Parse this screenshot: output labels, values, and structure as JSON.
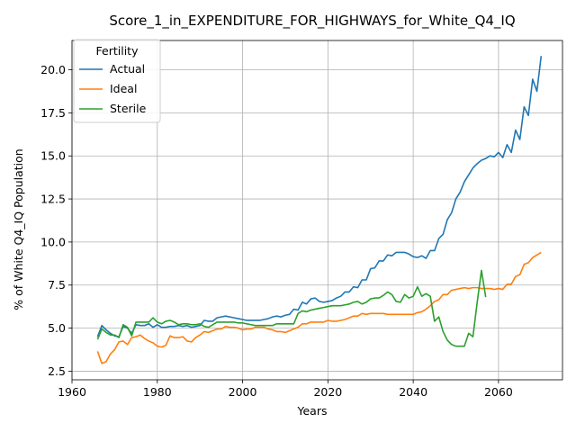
{
  "chart_data": {
    "type": "line",
    "title": "Score_1_in_EXPENDITURE_FOR_HIGHWAYS_for_White_Q4_IQ",
    "xlabel": "Years",
    "ylabel": "% of White Q4_IQ Population",
    "xlim": [
      1960,
      2075
    ],
    "ylim": [
      2.0,
      21.7
    ],
    "x_ticks": [
      1960,
      1980,
      2000,
      2020,
      2040,
      2060
    ],
    "x_tick_labels": [
      "1960",
      "1980",
      "2000",
      "2020",
      "2040",
      "2060"
    ],
    "y_ticks": [
      2.5,
      5.0,
      7.5,
      10.0,
      12.5,
      15.0,
      17.5,
      20.0
    ],
    "y_tick_labels": [
      "2.5",
      "5.0",
      "7.5",
      "10.0",
      "12.5",
      "15.0",
      "17.5",
      "20.0"
    ],
    "grid": true,
    "legend": {
      "title": "Fertility",
      "placement": "top-left"
    },
    "series": [
      {
        "name": "Actual",
        "color": "#1f77b4",
        "points": [
          [
            1966,
            4.5
          ],
          [
            1967,
            5.15
          ],
          [
            1968,
            4.9
          ],
          [
            1969,
            4.7
          ],
          [
            1970,
            4.55
          ],
          [
            1971,
            4.5
          ],
          [
            1972,
            5.1
          ],
          [
            1973,
            5.0
          ],
          [
            1974,
            4.7
          ],
          [
            1975,
            5.2
          ],
          [
            1976,
            5.15
          ],
          [
            1977,
            5.15
          ],
          [
            1978,
            5.25
          ],
          [
            1979,
            5.05
          ],
          [
            1980,
            5.2
          ],
          [
            1981,
            5.05
          ],
          [
            1982,
            5.05
          ],
          [
            1983,
            5.1
          ],
          [
            1984,
            5.1
          ],
          [
            1985,
            5.15
          ],
          [
            1986,
            5.1
          ],
          [
            1987,
            5.15
          ],
          [
            1988,
            5.05
          ],
          [
            1989,
            5.1
          ],
          [
            1990,
            5.15
          ],
          [
            1991,
            5.45
          ],
          [
            1992,
            5.4
          ],
          [
            1993,
            5.4
          ],
          [
            1994,
            5.6
          ],
          [
            1995,
            5.65
          ],
          [
            1996,
            5.7
          ],
          [
            1997,
            5.65
          ],
          [
            1998,
            5.6
          ],
          [
            1999,
            5.55
          ],
          [
            2000,
            5.5
          ],
          [
            2001,
            5.45
          ],
          [
            2002,
            5.45
          ],
          [
            2003,
            5.45
          ],
          [
            2004,
            5.45
          ],
          [
            2005,
            5.5
          ],
          [
            2006,
            5.55
          ],
          [
            2007,
            5.65
          ],
          [
            2008,
            5.7
          ],
          [
            2009,
            5.65
          ],
          [
            2010,
            5.75
          ],
          [
            2011,
            5.8
          ],
          [
            2012,
            6.1
          ],
          [
            2013,
            6.05
          ],
          [
            2014,
            6.5
          ],
          [
            2015,
            6.4
          ],
          [
            2016,
            6.7
          ],
          [
            2017,
            6.75
          ],
          [
            2018,
            6.55
          ],
          [
            2019,
            6.5
          ],
          [
            2020,
            6.55
          ],
          [
            2021,
            6.6
          ],
          [
            2022,
            6.75
          ],
          [
            2023,
            6.85
          ],
          [
            2024,
            7.1
          ],
          [
            2025,
            7.1
          ],
          [
            2026,
            7.4
          ],
          [
            2027,
            7.35
          ],
          [
            2028,
            7.8
          ],
          [
            2029,
            7.8
          ],
          [
            2030,
            8.45
          ],
          [
            2031,
            8.5
          ],
          [
            2032,
            8.9
          ],
          [
            2033,
            8.9
          ],
          [
            2034,
            9.25
          ],
          [
            2035,
            9.2
          ],
          [
            2036,
            9.4
          ],
          [
            2037,
            9.4
          ],
          [
            2038,
            9.4
          ],
          [
            2039,
            9.3
          ],
          [
            2040,
            9.15
          ],
          [
            2041,
            9.1
          ],
          [
            2042,
            9.2
          ],
          [
            2043,
            9.05
          ],
          [
            2044,
            9.5
          ],
          [
            2045,
            9.5
          ],
          [
            2046,
            10.2
          ],
          [
            2047,
            10.45
          ],
          [
            2048,
            11.3
          ],
          [
            2049,
            11.7
          ],
          [
            2050,
            12.5
          ],
          [
            2051,
            12.9
          ],
          [
            2052,
            13.5
          ],
          [
            2053,
            13.9
          ],
          [
            2054,
            14.3
          ],
          [
            2055,
            14.55
          ],
          [
            2056,
            14.75
          ],
          [
            2057,
            14.85
          ],
          [
            2058,
            15.0
          ],
          [
            2059,
            14.95
          ],
          [
            2060,
            15.2
          ],
          [
            2061,
            14.9
          ],
          [
            2062,
            15.65
          ],
          [
            2063,
            15.2
          ],
          [
            2064,
            16.5
          ],
          [
            2065,
            15.95
          ],
          [
            2066,
            17.85
          ],
          [
            2067,
            17.35
          ],
          [
            2068,
            19.45
          ],
          [
            2069,
            18.75
          ],
          [
            2070,
            20.8
          ]
        ]
      },
      {
        "name": "Ideal",
        "color": "#ff7f0e",
        "points": [
          [
            1966,
            3.65
          ],
          [
            1967,
            2.95
          ],
          [
            1968,
            3.05
          ],
          [
            1969,
            3.5
          ],
          [
            1970,
            3.75
          ],
          [
            1971,
            4.2
          ],
          [
            1972,
            4.25
          ],
          [
            1973,
            4.05
          ],
          [
            1974,
            4.45
          ],
          [
            1975,
            4.5
          ],
          [
            1976,
            4.6
          ],
          [
            1977,
            4.4
          ],
          [
            1978,
            4.25
          ],
          [
            1979,
            4.15
          ],
          [
            1980,
            3.95
          ],
          [
            1981,
            3.9
          ],
          [
            1982,
            4.0
          ],
          [
            1983,
            4.55
          ],
          [
            1984,
            4.45
          ],
          [
            1985,
            4.45
          ],
          [
            1986,
            4.5
          ],
          [
            1987,
            4.25
          ],
          [
            1988,
            4.2
          ],
          [
            1989,
            4.45
          ],
          [
            1990,
            4.6
          ],
          [
            1991,
            4.8
          ],
          [
            1992,
            4.75
          ],
          [
            1993,
            4.85
          ],
          [
            1994,
            4.95
          ],
          [
            1995,
            4.95
          ],
          [
            1996,
            5.1
          ],
          [
            1997,
            5.05
          ],
          [
            1998,
            5.05
          ],
          [
            1999,
            5.0
          ],
          [
            2000,
            4.9
          ],
          [
            2001,
            4.95
          ],
          [
            2002,
            4.95
          ],
          [
            2003,
            5.05
          ],
          [
            2004,
            5.05
          ],
          [
            2005,
            5.05
          ],
          [
            2006,
            4.95
          ],
          [
            2007,
            4.9
          ],
          [
            2008,
            4.8
          ],
          [
            2009,
            4.8
          ],
          [
            2010,
            4.75
          ],
          [
            2011,
            4.85
          ],
          [
            2012,
            4.95
          ],
          [
            2013,
            5.05
          ],
          [
            2014,
            5.25
          ],
          [
            2015,
            5.25
          ],
          [
            2016,
            5.35
          ],
          [
            2017,
            5.35
          ],
          [
            2018,
            5.35
          ],
          [
            2019,
            5.35
          ],
          [
            2020,
            5.45
          ],
          [
            2021,
            5.4
          ],
          [
            2022,
            5.4
          ],
          [
            2023,
            5.45
          ],
          [
            2024,
            5.5
          ],
          [
            2025,
            5.6
          ],
          [
            2026,
            5.7
          ],
          [
            2027,
            5.7
          ],
          [
            2028,
            5.85
          ],
          [
            2029,
            5.8
          ],
          [
            2030,
            5.85
          ],
          [
            2031,
            5.85
          ],
          [
            2032,
            5.85
          ],
          [
            2033,
            5.85
          ],
          [
            2034,
            5.8
          ],
          [
            2035,
            5.8
          ],
          [
            2036,
            5.8
          ],
          [
            2037,
            5.8
          ],
          [
            2038,
            5.8
          ],
          [
            2039,
            5.8
          ],
          [
            2040,
            5.8
          ],
          [
            2041,
            5.9
          ],
          [
            2042,
            5.95
          ],
          [
            2043,
            6.1
          ],
          [
            2044,
            6.3
          ],
          [
            2045,
            6.55
          ],
          [
            2046,
            6.65
          ],
          [
            2047,
            6.95
          ],
          [
            2048,
            6.95
          ],
          [
            2049,
            7.2
          ],
          [
            2050,
            7.25
          ],
          [
            2051,
            7.3
          ],
          [
            2052,
            7.35
          ],
          [
            2053,
            7.3
          ],
          [
            2054,
            7.35
          ],
          [
            2055,
            7.35
          ],
          [
            2056,
            7.3
          ],
          [
            2057,
            7.3
          ],
          [
            2058,
            7.3
          ],
          [
            2059,
            7.25
          ],
          [
            2060,
            7.3
          ],
          [
            2061,
            7.25
          ],
          [
            2062,
            7.55
          ],
          [
            2063,
            7.55
          ],
          [
            2064,
            8.0
          ],
          [
            2065,
            8.1
          ],
          [
            2066,
            8.7
          ],
          [
            2067,
            8.8
          ],
          [
            2068,
            9.1
          ],
          [
            2069,
            9.25
          ],
          [
            2070,
            9.4
          ]
        ]
      },
      {
        "name": "Sterile",
        "color": "#2ca02c",
        "points": [
          [
            1966,
            4.35
          ],
          [
            1967,
            4.95
          ],
          [
            1968,
            4.75
          ],
          [
            1969,
            4.6
          ],
          [
            1970,
            4.6
          ],
          [
            1971,
            4.45
          ],
          [
            1972,
            5.2
          ],
          [
            1973,
            5.05
          ],
          [
            1974,
            4.55
          ],
          [
            1975,
            5.35
          ],
          [
            1976,
            5.35
          ],
          [
            1977,
            5.35
          ],
          [
            1978,
            5.35
          ],
          [
            1979,
            5.6
          ],
          [
            1980,
            5.35
          ],
          [
            1981,
            5.25
          ],
          [
            1982,
            5.4
          ],
          [
            1983,
            5.45
          ],
          [
            1984,
            5.35
          ],
          [
            1985,
            5.2
          ],
          [
            1986,
            5.25
          ],
          [
            1987,
            5.25
          ],
          [
            1988,
            5.2
          ],
          [
            1989,
            5.2
          ],
          [
            1990,
            5.25
          ],
          [
            1991,
            5.1
          ],
          [
            1992,
            5.05
          ],
          [
            1993,
            5.2
          ],
          [
            1994,
            5.35
          ],
          [
            1995,
            5.35
          ],
          [
            1996,
            5.35
          ],
          [
            1997,
            5.35
          ],
          [
            1998,
            5.35
          ],
          [
            1999,
            5.3
          ],
          [
            2000,
            5.3
          ],
          [
            2001,
            5.25
          ],
          [
            2002,
            5.2
          ],
          [
            2003,
            5.15
          ],
          [
            2004,
            5.15
          ],
          [
            2005,
            5.15
          ],
          [
            2006,
            5.15
          ],
          [
            2007,
            5.15
          ],
          [
            2008,
            5.25
          ],
          [
            2009,
            5.25
          ],
          [
            2010,
            5.25
          ],
          [
            2011,
            5.25
          ],
          [
            2012,
            5.25
          ],
          [
            2013,
            5.85
          ],
          [
            2014,
            6.0
          ],
          [
            2015,
            5.95
          ],
          [
            2016,
            6.05
          ],
          [
            2017,
            6.1
          ],
          [
            2018,
            6.15
          ],
          [
            2019,
            6.2
          ],
          [
            2020,
            6.25
          ],
          [
            2021,
            6.3
          ],
          [
            2022,
            6.3
          ],
          [
            2023,
            6.3
          ],
          [
            2024,
            6.35
          ],
          [
            2025,
            6.4
          ],
          [
            2026,
            6.5
          ],
          [
            2027,
            6.55
          ],
          [
            2028,
            6.4
          ],
          [
            2029,
            6.5
          ],
          [
            2030,
            6.7
          ],
          [
            2031,
            6.75
          ],
          [
            2032,
            6.75
          ],
          [
            2033,
            6.9
          ],
          [
            2034,
            7.1
          ],
          [
            2035,
            6.95
          ],
          [
            2036,
            6.55
          ],
          [
            2037,
            6.5
          ],
          [
            2038,
            6.95
          ],
          [
            2039,
            6.75
          ],
          [
            2040,
            6.85
          ],
          [
            2041,
            7.4
          ],
          [
            2042,
            6.85
          ],
          [
            2043,
            7.0
          ],
          [
            2044,
            6.85
          ],
          [
            2045,
            5.4
          ],
          [
            2046,
            5.65
          ],
          [
            2047,
            4.8
          ],
          [
            2048,
            4.3
          ],
          [
            2049,
            4.05
          ],
          [
            2050,
            3.95
          ],
          [
            2051,
            3.95
          ],
          [
            2052,
            3.95
          ],
          [
            2053,
            4.7
          ],
          [
            2054,
            4.5
          ],
          [
            2055,
            6.5
          ],
          [
            2056,
            8.35
          ],
          [
            2057,
            6.8
          ]
        ]
      }
    ]
  }
}
